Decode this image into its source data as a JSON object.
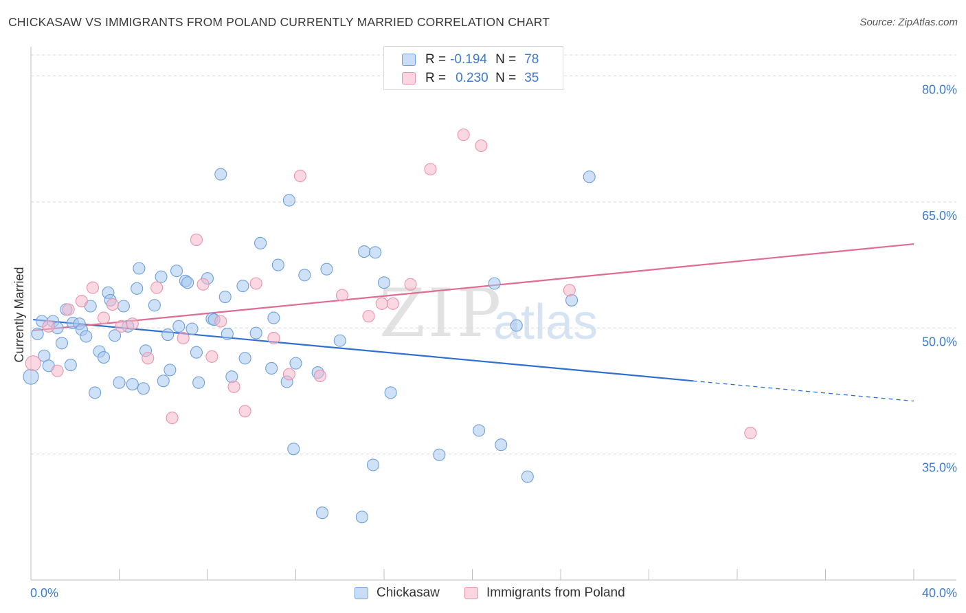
{
  "title": "CHICKASAW VS IMMIGRANTS FROM POLAND CURRENTLY MARRIED CORRELATION CHART",
  "source": "Source: ZipAtlas.com",
  "watermark": {
    "part1": "ZIP",
    "part2": "atlas"
  },
  "legend": {
    "rows": [
      {
        "r_label": "R =",
        "r_value": "-0.194",
        "n_label": "N =",
        "n_value": "78",
        "color": "#a8c8f0"
      },
      {
        "r_label": "R =",
        "r_value": "0.230",
        "n_label": "N =",
        "n_value": "35",
        "color": "#f5b8cb"
      }
    ]
  },
  "bottom_legend": [
    {
      "label": "Chickasaw",
      "color": "#a8c8f0"
    },
    {
      "label": "Immigrants from Poland",
      "color": "#f5b8cb"
    }
  ],
  "chart_data": {
    "type": "scatter",
    "title": "CHICKASAW VS IMMIGRANTS FROM POLAND CURRENTLY MARRIED CORRELATION CHART",
    "xlabel": "",
    "ylabel": "Currently Married",
    "xlim": [
      0,
      40
    ],
    "ylim": [
      20,
      82.5
    ],
    "x_tick_labels": [
      "0.0%",
      "40.0%"
    ],
    "y_ticks": [
      35,
      50,
      65,
      80
    ],
    "y_tick_labels": [
      "35.0%",
      "50.0%",
      "65.0%",
      "80.0%"
    ],
    "grid": true,
    "legend_position": "top-center",
    "series": [
      {
        "name": "Chickasaw",
        "color": "#6fa0dc",
        "fill": "#a8c8f0",
        "trend": {
          "x0": 0.1,
          "y0": 51.0,
          "x1": 30.0,
          "y1": 43.7,
          "x_dash_end": 40.0,
          "y_dash_end": 41.3,
          "color": "#2e6fd0"
        },
        "points": [
          [
            0.0,
            44.2
          ],
          [
            0.3,
            49.3
          ],
          [
            0.5,
            50.8
          ],
          [
            0.6,
            46.7
          ],
          [
            0.8,
            45.5
          ],
          [
            1.0,
            50.8
          ],
          [
            1.2,
            50.0
          ],
          [
            1.4,
            48.2
          ],
          [
            1.6,
            52.2
          ],
          [
            1.8,
            45.6
          ],
          [
            1.9,
            50.6
          ],
          [
            2.2,
            50.5
          ],
          [
            2.3,
            49.8
          ],
          [
            2.5,
            49.0
          ],
          [
            2.7,
            52.6
          ],
          [
            2.9,
            42.3
          ],
          [
            3.1,
            47.2
          ],
          [
            3.3,
            46.5
          ],
          [
            3.5,
            54.2
          ],
          [
            3.6,
            53.3
          ],
          [
            3.8,
            49.1
          ],
          [
            4.0,
            43.5
          ],
          [
            4.2,
            52.6
          ],
          [
            4.4,
            50.2
          ],
          [
            4.6,
            43.3
          ],
          [
            4.8,
            54.7
          ],
          [
            4.9,
            57.1
          ],
          [
            5.1,
            42.8
          ],
          [
            5.2,
            47.3
          ],
          [
            5.6,
            52.7
          ],
          [
            5.9,
            56.1
          ],
          [
            6.0,
            43.7
          ],
          [
            6.2,
            49.2
          ],
          [
            6.3,
            45.0
          ],
          [
            6.6,
            56.8
          ],
          [
            6.7,
            50.2
          ],
          [
            7.0,
            55.6
          ],
          [
            7.1,
            55.4
          ],
          [
            7.3,
            49.9
          ],
          [
            7.5,
            47.1
          ],
          [
            7.6,
            43.5
          ],
          [
            8.0,
            55.9
          ],
          [
            8.2,
            51.1
          ],
          [
            8.3,
            51.0
          ],
          [
            8.6,
            68.3
          ],
          [
            8.8,
            53.7
          ],
          [
            8.9,
            49.3
          ],
          [
            9.1,
            44.2
          ],
          [
            9.6,
            55.0
          ],
          [
            9.7,
            46.4
          ],
          [
            10.2,
            49.4
          ],
          [
            10.4,
            60.1
          ],
          [
            10.9,
            45.2
          ],
          [
            11.0,
            51.2
          ],
          [
            11.2,
            57.5
          ],
          [
            11.6,
            43.6
          ],
          [
            11.7,
            65.2
          ],
          [
            11.9,
            35.6
          ],
          [
            12.0,
            45.8
          ],
          [
            12.4,
            56.3
          ],
          [
            13.0,
            44.7
          ],
          [
            13.2,
            28.0
          ],
          [
            13.4,
            57.0
          ],
          [
            14.0,
            48.5
          ],
          [
            15.1,
            59.1
          ],
          [
            15.0,
            27.5
          ],
          [
            15.5,
            33.7
          ],
          [
            15.6,
            59.0
          ],
          [
            16.0,
            55.4
          ],
          [
            16.3,
            42.3
          ],
          [
            18.5,
            34.9
          ],
          [
            20.3,
            37.8
          ],
          [
            21.0,
            55.3
          ],
          [
            21.3,
            36.1
          ],
          [
            22.0,
            50.3
          ],
          [
            22.5,
            32.3
          ],
          [
            24.5,
            53.3
          ],
          [
            25.3,
            68.0
          ]
        ]
      },
      {
        "name": "Immigrants from Poland",
        "color": "#e994ae",
        "fill": "#f5b8cb",
        "trend": {
          "x0": 0.1,
          "y0": 49.7,
          "x1": 40.0,
          "y1": 60.0,
          "color": "#e06b93"
        },
        "points": [
          [
            0.1,
            45.8
          ],
          [
            0.8,
            50.2
          ],
          [
            1.2,
            44.9
          ],
          [
            1.7,
            52.2
          ],
          [
            2.3,
            53.2
          ],
          [
            2.8,
            54.8
          ],
          [
            3.3,
            51.2
          ],
          [
            3.7,
            52.8
          ],
          [
            4.1,
            50.2
          ],
          [
            4.6,
            50.5
          ],
          [
            5.3,
            46.4
          ],
          [
            5.7,
            54.8
          ],
          [
            6.4,
            39.3
          ],
          [
            6.9,
            48.8
          ],
          [
            7.5,
            60.5
          ],
          [
            7.8,
            55.2
          ],
          [
            8.2,
            46.6
          ],
          [
            8.6,
            50.8
          ],
          [
            9.2,
            43.0
          ],
          [
            9.7,
            40.1
          ],
          [
            10.2,
            55.3
          ],
          [
            11.0,
            48.8
          ],
          [
            11.7,
            44.5
          ],
          [
            12.2,
            68.1
          ],
          [
            13.1,
            44.3
          ],
          [
            14.1,
            53.9
          ],
          [
            15.3,
            51.4
          ],
          [
            15.9,
            52.9
          ],
          [
            16.4,
            52.9
          ],
          [
            17.2,
            55.2
          ],
          [
            18.1,
            68.9
          ],
          [
            19.6,
            73.0
          ],
          [
            20.4,
            71.7
          ],
          [
            24.4,
            54.5
          ],
          [
            32.6,
            37.5
          ]
        ]
      }
    ]
  }
}
